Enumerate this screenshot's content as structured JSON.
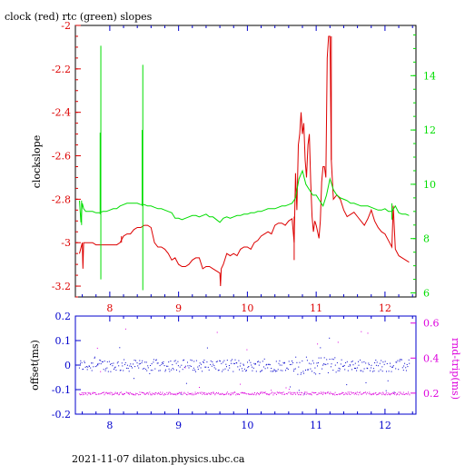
{
  "title": "clock (red) rtc (green) slopes",
  "footer": "2021-11-07  dilaton.physics.ubc.ca",
  "colors": {
    "red": "#dd0000",
    "green": "#00dd00",
    "blue": "#0000cc",
    "magenta": "#dd00dd",
    "frame": "#000000"
  },
  "chart_data": [
    {
      "type": "line",
      "title": "clock (red) rtc (green) slopes",
      "ylabel": "clockslope",
      "y2label": "",
      "xlim": [
        7.5,
        12.45
      ],
      "ylim": [
        -3.25,
        -2.0
      ],
      "y2lim": [
        5.85,
        15.85
      ],
      "x_ticks": [
        "8",
        "9",
        "10",
        "11",
        "12"
      ],
      "y_ticks": [
        "-2",
        "-2.2",
        "-2.4",
        "-2.6",
        "-2.8",
        "-3",
        "-3.2"
      ],
      "y2_ticks": [
        "6",
        "8",
        "10",
        "12",
        "14"
      ],
      "grid": false,
      "series": [
        {
          "name": "clock",
          "axis": "left",
          "color": "#dd0000",
          "x": [
            7.56,
            7.6,
            7.61,
            7.62,
            7.65,
            7.7,
            7.75,
            7.8,
            7.85,
            7.9,
            7.95,
            8.0,
            8.05,
            8.1,
            8.15,
            8.2,
            8.25,
            8.3,
            8.35,
            8.4,
            8.45,
            8.5,
            8.55,
            8.6,
            8.65,
            8.7,
            8.75,
            8.8,
            8.85,
            8.9,
            8.95,
            9.0,
            9.05,
            9.1,
            9.15,
            9.2,
            9.25,
            9.3,
            9.35,
            9.4,
            9.45,
            9.5,
            9.55,
            9.6,
            9.61,
            9.62,
            9.65,
            9.7,
            9.75,
            9.8,
            9.85,
            9.9,
            9.95,
            10.0,
            10.05,
            10.1,
            10.15,
            10.2,
            10.25,
            10.3,
            10.35,
            10.4,
            10.45,
            10.5,
            10.55,
            10.6,
            10.65,
            10.68,
            10.7,
            10.72,
            10.74,
            10.76,
            10.78,
            10.8,
            10.82,
            10.84,
            10.86,
            10.88,
            10.9,
            10.92,
            10.94,
            10.96,
            10.98,
            11.0,
            11.02,
            11.04,
            11.06,
            11.08,
            11.1,
            11.12,
            11.14,
            11.16,
            11.18,
            11.2,
            11.22,
            11.25,
            11.3,
            11.35,
            11.4,
            11.45,
            11.5,
            11.55,
            11.6,
            11.65,
            11.7,
            11.75,
            11.8,
            11.85,
            11.9,
            11.95,
            12.0,
            12.05,
            12.1,
            12.12,
            12.15,
            12.2,
            12.25,
            12.3,
            12.35
          ],
          "values": [
            -3.05,
            -3.0,
            -3.12,
            -3.0,
            -3.0,
            -3.0,
            -3.0,
            -3.01,
            -3.01,
            -3.01,
            -3.01,
            -3.01,
            -3.01,
            -3.01,
            -3.0,
            -2.97,
            -2.96,
            -2.96,
            -2.94,
            -2.93,
            -2.93,
            -2.92,
            -2.92,
            -2.93,
            -3.0,
            -3.02,
            -3.02,
            -3.03,
            -3.05,
            -3.08,
            -3.07,
            -3.1,
            -3.11,
            -3.11,
            -3.1,
            -3.08,
            -3.07,
            -3.07,
            -3.12,
            -3.11,
            -3.11,
            -3.12,
            -3.13,
            -3.14,
            -3.2,
            -3.12,
            -3.1,
            -3.05,
            -3.06,
            -3.05,
            -3.06,
            -3.03,
            -3.02,
            -3.02,
            -3.03,
            -3.0,
            -2.99,
            -2.97,
            -2.96,
            -2.95,
            -2.96,
            -2.92,
            -2.91,
            -2.91,
            -2.92,
            -2.9,
            -2.89,
            -3.0,
            -2.68,
            -2.85,
            -2.55,
            -2.5,
            -2.4,
            -2.5,
            -2.45,
            -2.62,
            -2.7,
            -2.55,
            -2.5,
            -2.72,
            -2.88,
            -2.95,
            -2.9,
            -2.92,
            -2.95,
            -2.98,
            -2.9,
            -2.72,
            -2.65,
            -2.65,
            -2.7,
            -2.15,
            -2.05,
            -2.05,
            -2.62,
            -2.8,
            -2.78,
            -2.8,
            -2.85,
            -2.88,
            -2.87,
            -2.86,
            -2.88,
            -2.9,
            -2.92,
            -2.89,
            -2.85,
            -2.9,
            -2.93,
            -2.95,
            -2.96,
            -2.99,
            -3.02,
            -2.83,
            -3.03,
            -3.06,
            -3.07,
            -3.08,
            -3.09
          ],
          "spikes": [
            {
              "x": 8.17,
              "top": -2.97,
              "bottom": -3.0
            },
            {
              "x": 10.68,
              "top": -2.88,
              "bottom": -3.08
            },
            {
              "x": 11.22,
              "top": -2.05,
              "bottom": -2.62
            }
          ]
        },
        {
          "name": "rtc",
          "axis": "right",
          "color": "#00dd00",
          "x": [
            7.56,
            7.58,
            7.6,
            7.62,
            7.65,
            7.7,
            7.75,
            7.8,
            7.85,
            7.9,
            7.95,
            8.0,
            8.05,
            8.1,
            8.15,
            8.2,
            8.25,
            8.3,
            8.35,
            8.4,
            8.45,
            8.5,
            8.55,
            8.6,
            8.65,
            8.7,
            8.75,
            8.8,
            8.85,
            8.9,
            8.95,
            9.0,
            9.05,
            9.1,
            9.15,
            9.2,
            9.25,
            9.3,
            9.35,
            9.4,
            9.45,
            9.5,
            9.55,
            9.6,
            9.65,
            9.7,
            9.75,
            9.8,
            9.85,
            9.9,
            9.95,
            10.0,
            10.05,
            10.1,
            10.15,
            10.2,
            10.25,
            10.3,
            10.35,
            10.4,
            10.45,
            10.5,
            10.55,
            10.6,
            10.65,
            10.7,
            10.75,
            10.8,
            10.85,
            10.9,
            10.95,
            11.0,
            11.05,
            11.1,
            11.15,
            11.2,
            11.25,
            11.3,
            11.35,
            11.4,
            11.45,
            11.5,
            11.55,
            11.6,
            11.65,
            11.7,
            11.75,
            11.8,
            11.85,
            11.9,
            11.95,
            12.0,
            12.05,
            12.1,
            12.15,
            12.2,
            12.25,
            12.3,
            12.35
          ],
          "values": [
            9.4,
            8.6,
            9.3,
            9.1,
            9.0,
            9.0,
            9.0,
            8.95,
            8.95,
            9.0,
            9.0,
            9.05,
            9.1,
            9.1,
            9.2,
            9.25,
            9.3,
            9.3,
            9.3,
            9.3,
            9.25,
            9.25,
            9.2,
            9.2,
            9.15,
            9.1,
            9.1,
            9.05,
            9.0,
            8.95,
            8.75,
            8.75,
            8.7,
            8.75,
            8.8,
            8.85,
            8.85,
            8.8,
            8.85,
            8.9,
            8.8,
            8.8,
            8.7,
            8.6,
            8.75,
            8.8,
            8.75,
            8.8,
            8.85,
            8.85,
            8.9,
            8.9,
            8.95,
            8.95,
            9.0,
            9.0,
            9.05,
            9.1,
            9.1,
            9.1,
            9.15,
            9.2,
            9.2,
            9.25,
            9.3,
            9.5,
            10.2,
            10.5,
            10.0,
            9.8,
            9.6,
            9.6,
            9.4,
            9.2,
            9.6,
            10.2,
            9.8,
            9.6,
            9.5,
            9.45,
            9.4,
            9.3,
            9.3,
            9.25,
            9.2,
            9.2,
            9.2,
            9.15,
            9.1,
            9.05,
            9.05,
            9.1,
            9.0,
            9.0,
            9.2,
            8.95,
            8.9,
            8.9,
            8.85
          ],
          "spikes": [
            {
              "x": 7.87,
              "top": 15.1,
              "bottom": 6.5
            },
            {
              "x": 7.86,
              "top": 11.9,
              "bottom": 8.9
            },
            {
              "x": 8.47,
              "top": 12.0,
              "bottom": 9.2
            },
            {
              "x": 8.48,
              "top": 14.4,
              "bottom": 6.1
            },
            {
              "x": 7.59,
              "top": 9.4,
              "bottom": 8.5
            },
            {
              "x": 12.1,
              "top": 9.3,
              "bottom": 8.7
            }
          ]
        }
      ]
    },
    {
      "type": "scatter",
      "ylabel": "offset(ms)",
      "y2label": "rnd-trip(ms)",
      "xlim": [
        7.5,
        12.45
      ],
      "ylim": [
        -0.2,
        0.2
      ],
      "y2lim": [
        0.08,
        0.64
      ],
      "x_ticks": [
        "8",
        "9",
        "10",
        "11",
        "12"
      ],
      "y_ticks": [
        "0.2",
        "0.1",
        "0",
        "-0.1",
        "-0.2"
      ],
      "y2_ticks": [
        "0.6",
        "0.4",
        "0.2"
      ],
      "grid": false,
      "series": [
        {
          "name": "offset",
          "axis": "left",
          "color": "#0000cc",
          "x_range": [
            7.55,
            12.35
          ],
          "center": 0.0,
          "spread": 0.025,
          "outlier_max": 0.12,
          "outlier_min": -0.13,
          "points": 420
        },
        {
          "name": "rnd-trip",
          "axis": "right",
          "color": "#dd00dd",
          "x_range": [
            7.55,
            12.35
          ],
          "center": 0.2,
          "spread": 0.008,
          "outlier_max": 0.6,
          "points": 420
        }
      ]
    }
  ]
}
